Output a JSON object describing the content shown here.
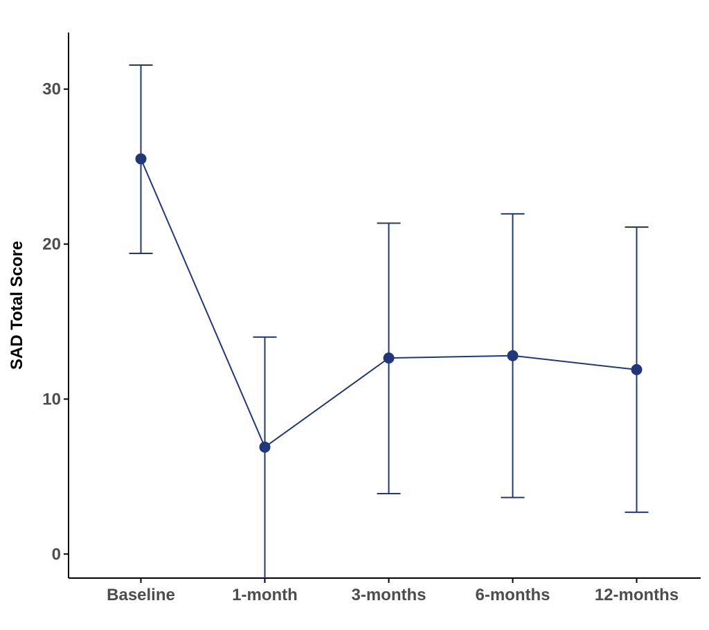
{
  "chart_data": {
    "type": "line",
    "y_label": "SAD Total Score",
    "categories": [
      "Baseline",
      "1-month",
      "3-months",
      "6-months",
      "12-months"
    ],
    "values": [
      25.5,
      6.9,
      12.65,
      12.8,
      11.9
    ],
    "lower": [
      19.4,
      -2,
      3.9,
      3.65,
      2.7
    ],
    "upper": [
      31.55,
      14.0,
      21.35,
      21.95,
      21.1
    ],
    "color": "#22377a",
    "ylim": [
      -1.55,
      33.65
    ],
    "yticks": [
      0,
      10,
      20,
      30
    ],
    "grid": false
  }
}
